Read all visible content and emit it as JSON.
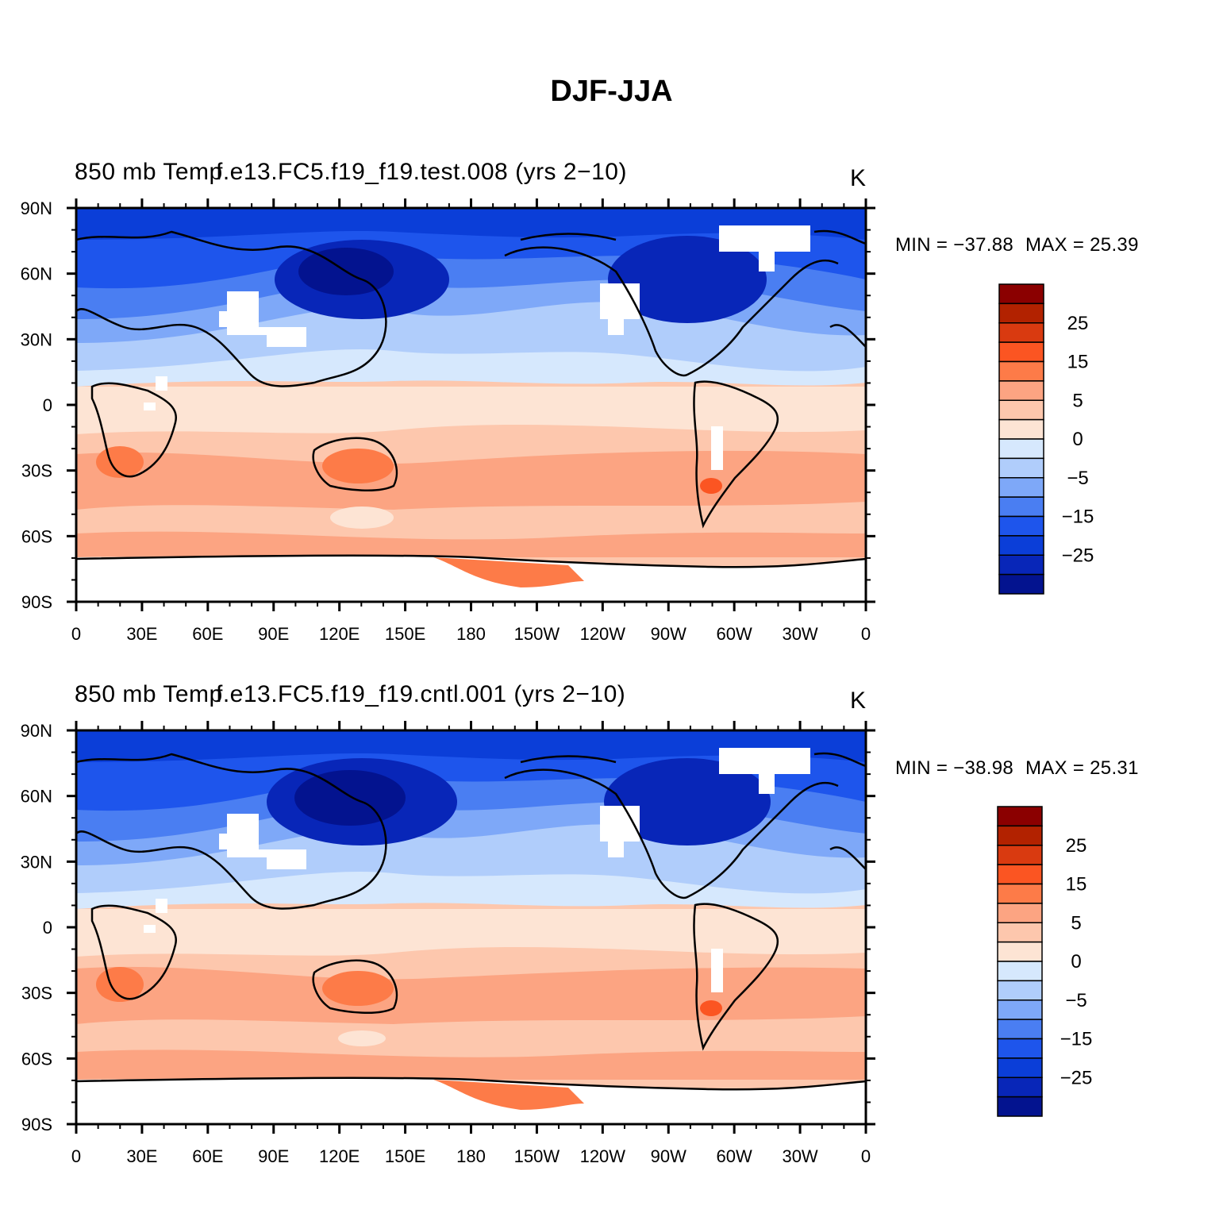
{
  "title": "DJF-JJA",
  "panels": [
    {
      "variable": "850 mb Temp",
      "case": "f.e13.FC5.f19_f19.test.008 (yrs 2−10)",
      "units": "K",
      "min_label": "MIN = −37.88",
      "max_label": "MAX =  25.39"
    },
    {
      "variable": "850 mb Temp",
      "case": "f.e13.FC5.f19_f19.cntl.001 (yrs 2−10)",
      "units": "K",
      "min_label": "MIN = −38.98",
      "max_label": "MAX =  25.31"
    }
  ],
  "axes": {
    "lat_labels": [
      "90N",
      "60N",
      "30N",
      "0",
      "30S",
      "60S",
      "90S"
    ],
    "lon_labels": [
      "0",
      "30E",
      "60E",
      "90E",
      "120E",
      "150E",
      "180",
      "150W",
      "120W",
      "90W",
      "60W",
      "30W",
      "0"
    ]
  },
  "colorbar": {
    "colors": [
      "#8b0000",
      "#b22200",
      "#d93a10",
      "#fb5522",
      "#fd7b48",
      "#fca482",
      "#fdc7ad",
      "#fde4d4",
      "#d6e8fd",
      "#b0cdfb",
      "#7ea8f8",
      "#4a7ef2",
      "#1e55ec",
      "#0b3ed8",
      "#0826b8",
      "#03138f"
    ],
    "labels": [
      "25",
      "15",
      "5",
      "0",
      "−5",
      "−15",
      "−25"
    ]
  }
}
